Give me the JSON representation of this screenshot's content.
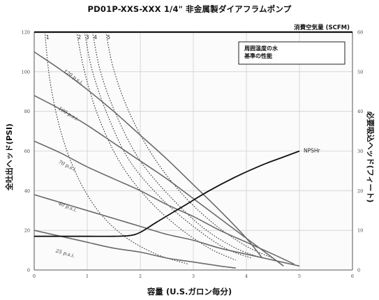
{
  "chart_data": {
    "type": "line",
    "title": "PD01P-XXS-XXX 1/4\"  非金属製ダイアフラムポンプ",
    "xlabel": "容量 (U.S.ガロン毎分)",
    "ylabel_left": "全吐出ヘッド(PSI)",
    "ylabel_right": "必要吸込ヘッド(フィート)",
    "air_label": "消費空気量 (SCFM)",
    "note_line1": "周囲温度の水",
    "note_line2": "基準の性能",
    "xlim": [
      0,
      6
    ],
    "ylim_left": [
      0,
      120
    ],
    "ylim_right": [
      0,
      60
    ],
    "grid": true,
    "x_ticks": [
      "0",
      "1",
      "2",
      "3",
      "4",
      "5",
      "6"
    ],
    "y_ticks_left": [
      "0",
      "20",
      "40",
      "60",
      "80",
      "100",
      "120"
    ],
    "y_ticks_right": [
      "0",
      "10",
      "20",
      "30",
      "40",
      "50",
      "60"
    ],
    "pressure_curves": [
      {
        "name": "120 p.s.i.",
        "label_x": 0.55,
        "label_y": 100,
        "label_angle": 35,
        "x": [
          0,
          0.5,
          1,
          1.5,
          2,
          2.5,
          3,
          3.5,
          4,
          4.3
        ],
        "y": [
          110,
          101,
          91,
          80,
          68,
          56,
          43,
          30,
          16,
          6
        ]
      },
      {
        "name": "100 p.s.i.",
        "label_x": 0.45,
        "label_y": 81,
        "label_angle": 31,
        "x": [
          0,
          0.5,
          1,
          1.5,
          2,
          2.5,
          3,
          3.5,
          4,
          4.5,
          4.7
        ],
        "y": [
          88,
          81,
          73,
          64,
          55,
          46,
          36,
          26,
          16,
          6,
          2
        ]
      },
      {
        "name": "70 p.s.i.",
        "label_x": 0.45,
        "label_y": 54,
        "label_angle": 26,
        "x": [
          0,
          0.5,
          1,
          1.5,
          2,
          2.5,
          3,
          3.5,
          4,
          4.5,
          4.9
        ],
        "y": [
          65,
          59,
          52,
          46,
          40,
          33,
          27,
          20,
          14,
          8,
          3
        ]
      },
      {
        "name": "40 p.s.i.",
        "label_x": 0.45,
        "label_y": 33,
        "label_angle": 22,
        "x": [
          0,
          0.5,
          1,
          1.5,
          2,
          2.5,
          3,
          3.5,
          4,
          4.5,
          5.0
        ],
        "y": [
          38,
          34,
          30,
          26,
          22,
          18,
          15,
          11,
          8,
          5,
          2
        ]
      },
      {
        "name": "25 p.s.i.",
        "label_x": 0.4,
        "label_y": 9,
        "label_angle": 16,
        "x": [
          0,
          0.5,
          1,
          1.5,
          2,
          2.5,
          3,
          3.5,
          3.8
        ],
        "y": [
          20,
          17,
          14,
          11,
          9,
          6,
          4,
          2,
          1
        ]
      }
    ],
    "air_curves": [
      {
        "name": "1",
        "x": [
          0.2,
          0.3,
          0.5,
          0.8,
          1.2,
          1.7,
          2.3,
          2.9
        ],
        "y": [
          120,
          95,
          70,
          48,
          30,
          17,
          8,
          3
        ]
      },
      {
        "name": "2",
        "x": [
          0.8,
          0.95,
          1.2,
          1.6,
          2.1,
          2.7,
          3.3,
          3.8
        ],
        "y": [
          120,
          100,
          78,
          55,
          37,
          22,
          11,
          5
        ]
      },
      {
        "name": "3",
        "x": [
          0.95,
          1.1,
          1.4,
          1.8,
          2.4,
          3.0,
          3.6,
          4.1
        ],
        "y": [
          120,
          100,
          77,
          55,
          36,
          22,
          11,
          6
        ]
      },
      {
        "name": "4",
        "x": [
          1.1,
          1.25,
          1.55,
          2.0,
          2.6,
          3.2,
          3.8,
          4.3
        ],
        "y": [
          120,
          100,
          78,
          55,
          36,
          21,
          11,
          6
        ]
      },
      {
        "name": "5",
        "x": [
          1.35,
          1.5,
          1.8,
          2.25,
          2.8,
          3.4,
          4.0,
          4.5
        ],
        "y": [
          120,
          101,
          79,
          57,
          38,
          23,
          12,
          6
        ]
      }
    ],
    "npsh_curve": {
      "name": "NPSHr",
      "x": [
        0,
        0.5,
        1,
        1.5,
        1.8,
        2.0,
        2.3,
        2.8,
        3.3,
        3.8,
        4.3,
        4.7,
        5.0
      ],
      "y": [
        8.5,
        8.5,
        8.5,
        8.5,
        8.7,
        9.5,
        12,
        16,
        20,
        23.5,
        26.5,
        28.5,
        30
      ]
    }
  }
}
